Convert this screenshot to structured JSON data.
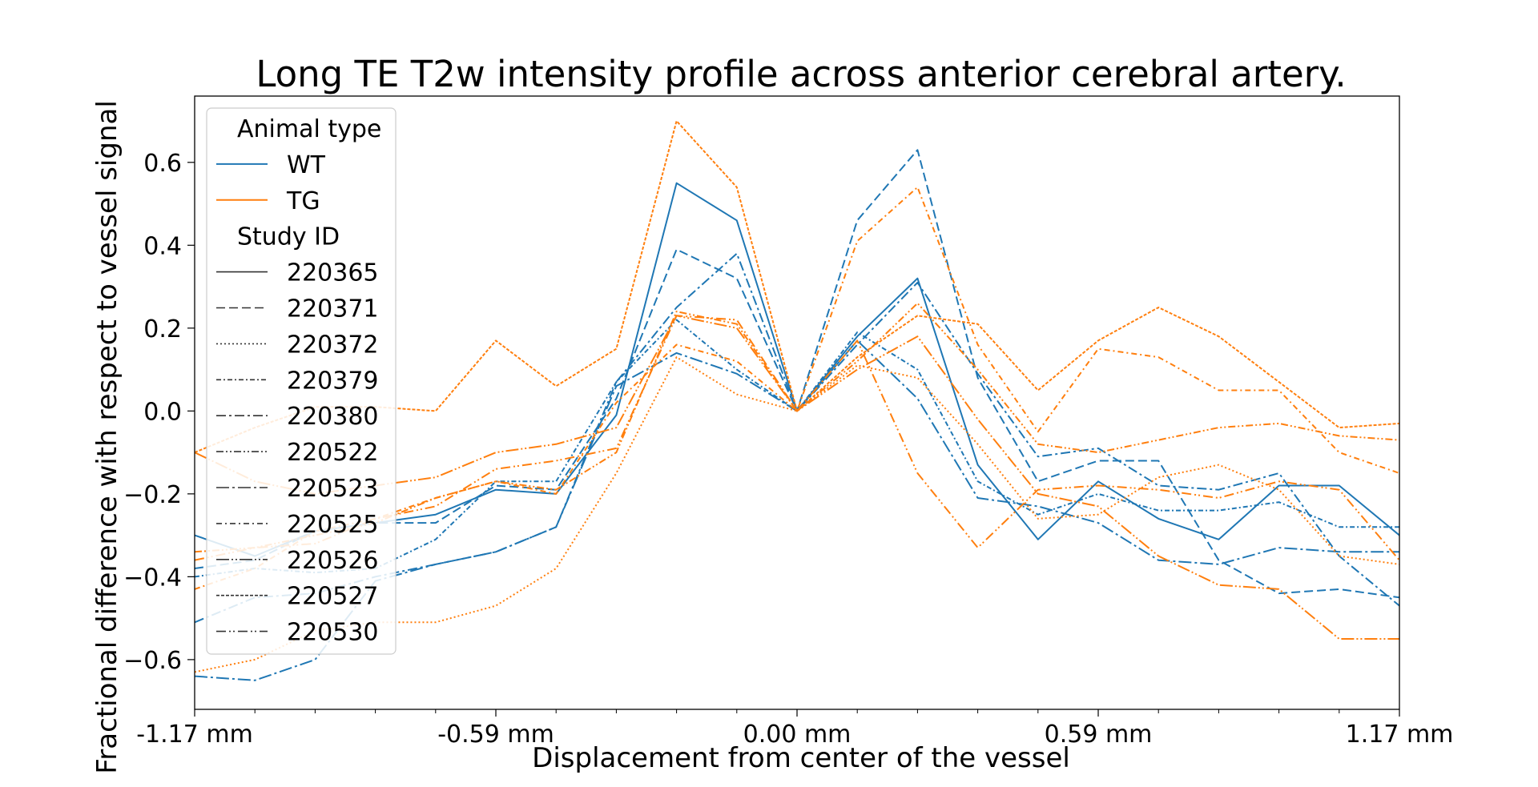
{
  "chart_data": {
    "type": "line",
    "title": "Long TE T2w intensity profile across anterior cerebral artery.",
    "xlabel": "Displacement from center of the vessel",
    "ylabel": "Fractional difference with respect to vessel signal",
    "xlim": [
      -1.17,
      1.17
    ],
    "ylim": [
      -0.72,
      0.76
    ],
    "x": [
      -1.17,
      -1.053,
      -0.936,
      -0.819,
      -0.702,
      -0.585,
      -0.468,
      -0.351,
      -0.234,
      -0.117,
      0.0,
      0.117,
      0.234,
      0.351,
      0.468,
      0.585,
      0.702,
      0.819,
      0.936,
      1.053,
      1.17
    ],
    "xticks": [
      -1.17,
      -0.585,
      0.0,
      0.585,
      1.17
    ],
    "xtick_labels": [
      "-1.17 mm",
      "-0.59 mm",
      "0.00 mm",
      "0.59 mm",
      "1.17 mm"
    ],
    "yticks": [
      -0.6,
      -0.4,
      -0.2,
      0.0,
      0.2,
      0.4,
      0.6
    ],
    "ytick_labels": [
      "−0.6",
      "−0.4",
      "−0.2",
      "0.0",
      "0.2",
      "0.4",
      "0.6"
    ],
    "grid": false,
    "legend_position": "top-left",
    "legend": {
      "hue_title": "Animal type",
      "hue_entries": [
        {
          "label": "WT",
          "color": "#1f77b4"
        },
        {
          "label": "TG",
          "color": "#ff7f0e"
        }
      ],
      "style_title": "Study ID",
      "style_entries": [
        {
          "label": "220365",
          "dash": "solid"
        },
        {
          "label": "220371",
          "dash": "dashed"
        },
        {
          "label": "220372",
          "dash": "dotted"
        },
        {
          "label": "220379",
          "dash": "dashdot-short"
        },
        {
          "label": "220380",
          "dash": "dashdot"
        },
        {
          "label": "220522",
          "dash": "dash-dot-dot"
        },
        {
          "label": "220523",
          "dash": "long-dash-dot"
        },
        {
          "label": "220525",
          "dash": "dash-dot-short"
        },
        {
          "label": "220526",
          "dash": "long-dash-dot-dot"
        },
        {
          "label": "220527",
          "dash": "dense-dash"
        },
        {
          "label": "220530",
          "dash": "dash-dot-dot-long"
        }
      ]
    },
    "series": [
      {
        "name": "220365",
        "animal": "WT",
        "dash": "solid",
        "values": [
          -0.3,
          -0.35,
          -0.29,
          -0.27,
          -0.25,
          -0.19,
          -0.2,
          -0.01,
          0.55,
          0.46,
          0.0,
          0.18,
          0.32,
          -0.13,
          -0.31,
          -0.17,
          -0.26,
          -0.31,
          -0.18,
          -0.18,
          -0.3
        ]
      },
      {
        "name": "220371",
        "animal": "WT",
        "dash": "dashed",
        "values": [
          -0.38,
          -0.36,
          -0.29,
          -0.27,
          -0.27,
          -0.18,
          -0.19,
          0.03,
          0.39,
          0.32,
          0.0,
          0.46,
          0.63,
          0.08,
          -0.17,
          -0.12,
          -0.12,
          -0.36,
          -0.44,
          -0.43,
          -0.45
        ]
      },
      {
        "name": "220380",
        "animal": "WT",
        "dash": "dashdot",
        "values": [
          -0.51,
          -0.45,
          -0.44,
          -0.4,
          -0.37,
          -0.34,
          -0.28,
          0.07,
          0.25,
          0.38,
          0.0,
          0.16,
          0.31,
          0.09,
          -0.11,
          -0.09,
          -0.18,
          -0.19,
          -0.15,
          -0.35,
          -0.47
        ]
      },
      {
        "name": "220379",
        "animal": "WT",
        "dash": "dashdot-short",
        "values": [
          -0.4,
          -0.38,
          -0.39,
          -0.38,
          -0.31,
          -0.17,
          -0.17,
          0.07,
          0.22,
          0.1,
          0.0,
          0.19,
          0.1,
          -0.17,
          -0.25,
          -0.2,
          -0.24,
          -0.24,
          -0.22,
          -0.28,
          -0.28
        ]
      },
      {
        "name": "220523",
        "animal": "WT",
        "dash": "long-dash-dot",
        "values": [
          -0.64,
          -0.65,
          -0.6,
          -0.41,
          -0.37,
          -0.34,
          -0.28,
          0.06,
          0.14,
          0.09,
          0.0,
          0.17,
          0.03,
          -0.21,
          -0.23,
          -0.27,
          -0.36,
          -0.37,
          -0.33,
          -0.34,
          -0.34
        ]
      },
      {
        "name": "220372",
        "animal": "TG",
        "dash": "dotted",
        "values": [
          -0.63,
          -0.6,
          -0.53,
          -0.51,
          -0.51,
          -0.47,
          -0.38,
          -0.15,
          0.13,
          0.04,
          0.0,
          0.11,
          0.08,
          -0.08,
          -0.26,
          -0.25,
          -0.16,
          -0.13,
          -0.19,
          -0.35,
          -0.37
        ]
      },
      {
        "name": "220522",
        "animal": "TG",
        "dash": "dash-dot-dot",
        "values": [
          -0.34,
          -0.33,
          -0.3,
          -0.27,
          -0.21,
          -0.17,
          -0.19,
          -0.1,
          0.24,
          0.21,
          0.0,
          0.12,
          0.26,
          0.1,
          -0.08,
          -0.1,
          -0.07,
          -0.04,
          -0.03,
          -0.06,
          -0.07
        ]
      },
      {
        "name": "220525",
        "animal": "TG",
        "dash": "dash-dot-short",
        "values": [
          -0.43,
          -0.38,
          -0.29,
          -0.26,
          -0.21,
          -0.17,
          -0.2,
          0.02,
          0.16,
          0.12,
          0.0,
          0.41,
          0.54,
          0.16,
          -0.05,
          0.15,
          0.13,
          0.05,
          0.05,
          -0.1,
          -0.15
        ]
      },
      {
        "name": "220526",
        "animal": "TG",
        "dash": "long-dash-dot-dot",
        "values": [
          -0.1,
          -0.17,
          -0.2,
          -0.18,
          -0.16,
          -0.1,
          -0.08,
          -0.04,
          0.23,
          0.2,
          0.0,
          0.1,
          0.18,
          -0.02,
          -0.2,
          -0.23,
          -0.35,
          -0.42,
          -0.43,
          -0.55,
          -0.55
        ]
      },
      {
        "name": "220527",
        "animal": "TG",
        "dash": "dense-dash",
        "values": [
          -0.1,
          -0.04,
          0.01,
          0.01,
          0.0,
          0.17,
          0.06,
          0.15,
          0.7,
          0.54,
          0.0,
          0.13,
          0.23,
          0.21,
          0.05,
          0.17,
          0.25,
          0.18,
          0.07,
          -0.04,
          -0.03
        ]
      },
      {
        "name": "220530",
        "animal": "TG",
        "dash": "dash-dot-dot-long",
        "values": [
          -0.36,
          -0.33,
          -0.32,
          -0.26,
          -0.23,
          -0.14,
          -0.12,
          -0.09,
          0.23,
          0.22,
          0.0,
          0.17,
          -0.15,
          -0.33,
          -0.19,
          -0.18,
          -0.19,
          -0.21,
          -0.17,
          -0.19,
          -0.36
        ]
      }
    ]
  }
}
